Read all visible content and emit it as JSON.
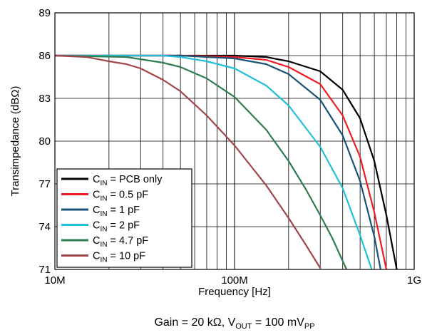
{
  "chart_data": {
    "type": "line",
    "title": "",
    "xlabel": "Frequency [Hz]",
    "ylabel": "Transimpedance (dBΩ)",
    "x_scale": "log",
    "xlim": [
      10000000,
      1000000000
    ],
    "ylim": [
      71,
      89
    ],
    "x_ticks": [
      {
        "value": 10000000,
        "label": "10M"
      },
      {
        "value": 100000000,
        "label": "100M"
      },
      {
        "value": 1000000000,
        "label": "1G"
      }
    ],
    "y_ticks": [
      {
        "value": 71,
        "label": "71"
      },
      {
        "value": 74,
        "label": "74"
      },
      {
        "value": 77,
        "label": "77"
      },
      {
        "value": 80,
        "label": "80"
      },
      {
        "value": 83,
        "label": "83"
      },
      {
        "value": 86,
        "label": "86"
      },
      {
        "value": 89,
        "label": "89"
      }
    ],
    "grid": true,
    "legend_position": "bottom-left",
    "series": [
      {
        "legend": {
          "prefix": "C",
          "sub": "IN",
          "text": " = PCB only"
        },
        "color": "#000000",
        "x": [
          10000000,
          50000000,
          100000000,
          150000000,
          200000000,
          300000000,
          400000000,
          500000000,
          600000000,
          700000000,
          800000000
        ],
        "y": [
          86.0,
          86.0,
          86.0,
          85.9,
          85.6,
          84.9,
          83.6,
          81.6,
          78.6,
          74.8,
          71.0
        ]
      },
      {
        "legend": {
          "prefix": "C",
          "sub": "IN",
          "text": " = 0.5 pF"
        },
        "color": "#ee1c24",
        "x": [
          10000000,
          50000000,
          100000000,
          150000000,
          200000000,
          300000000,
          400000000,
          500000000,
          600000000,
          700000000
        ],
        "y": [
          86.0,
          86.0,
          85.9,
          85.7,
          85.2,
          84.0,
          81.8,
          78.9,
          75.0,
          71.0
        ]
      },
      {
        "legend": {
          "prefix": "C",
          "sub": "IN",
          "text": " = 1 pF"
        },
        "color": "#1a5276",
        "x": [
          10000000,
          50000000,
          100000000,
          150000000,
          200000000,
          300000000,
          400000000,
          500000000,
          600000000,
          650000000
        ],
        "y": [
          86.0,
          86.0,
          85.8,
          85.4,
          84.7,
          82.9,
          80.4,
          77.2,
          73.3,
          71.0
        ]
      },
      {
        "legend": {
          "prefix": "C",
          "sub": "IN",
          "text": " = 2 pF"
        },
        "color": "#22bfd6",
        "x": [
          10000000,
          40000000,
          50000000,
          70000000,
          100000000,
          150000000,
          200000000,
          300000000,
          400000000,
          500000000,
          580000000
        ],
        "y": [
          86.0,
          86.0,
          85.9,
          85.6,
          85.1,
          83.9,
          82.5,
          79.6,
          76.7,
          73.4,
          71.0
        ]
      },
      {
        "legend": {
          "prefix": "C",
          "sub": "IN",
          "text": " = 4.7 pF"
        },
        "color": "#2e7d4f",
        "x": [
          10000000,
          25000000,
          40000000,
          50000000,
          70000000,
          100000000,
          150000000,
          200000000,
          250000000,
          300000000,
          350000000,
          420000000
        ],
        "y": [
          86.0,
          85.9,
          85.5,
          85.2,
          84.4,
          83.1,
          80.8,
          78.6,
          76.6,
          74.8,
          73.2,
          71.0
        ]
      },
      {
        "legend": {
          "prefix": "C",
          "sub": "IN",
          "text": " = 10 pF"
        },
        "color": "#a0454a",
        "x": [
          10000000,
          15000000,
          20000000,
          25000000,
          30000000,
          40000000,
          50000000,
          70000000,
          100000000,
          150000000,
          200000000,
          250000000,
          300000000
        ],
        "y": [
          86.0,
          85.9,
          85.6,
          85.4,
          85.1,
          84.3,
          83.5,
          81.8,
          79.7,
          76.9,
          74.6,
          72.7,
          71.1
        ]
      }
    ],
    "note": {
      "gain": "Gain = 20 kΩ, V",
      "vsub": "OUT",
      "eq": " = 100 mV",
      "ppsub": "PP"
    }
  }
}
